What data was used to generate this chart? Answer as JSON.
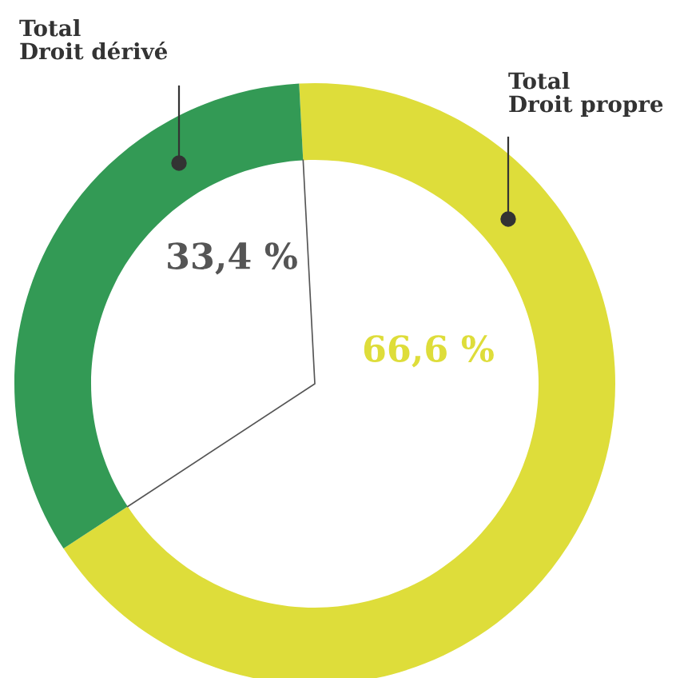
{
  "chart_data": {
    "type": "donut",
    "categories": [
      "Total\nDroit propre",
      "Total\nDroit dérivé"
    ],
    "values": [
      66.6,
      33.4
    ],
    "value_labels": [
      "66,6 %",
      "33,4 %"
    ],
    "colors": [
      "#dedd3a",
      "#339a55"
    ],
    "legend": false
  }
}
